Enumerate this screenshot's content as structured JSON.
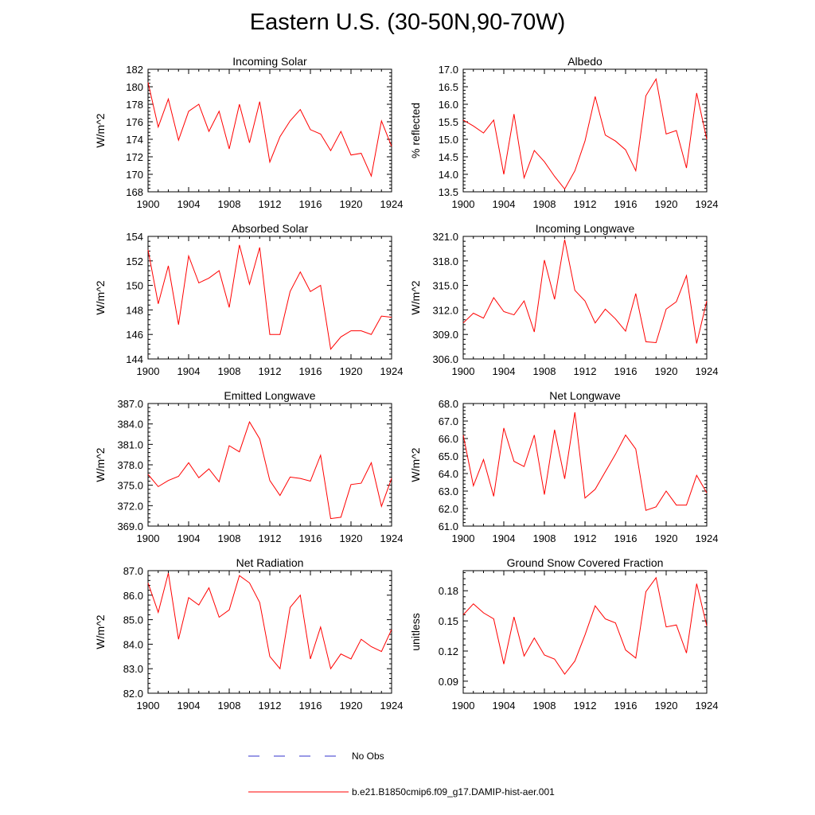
{
  "title": "Eastern U.S. (30-50N,90-70W)",
  "colors": {
    "model": "#ff0000",
    "obs": "#3333cc",
    "axis": "#000000"
  },
  "legend": {
    "obs_label": "No Obs",
    "model_label": "b.e21.B1850cmip6.f09_g17.DAMIP-hist-aer.001"
  },
  "chart_data": [
    {
      "type": "line",
      "title": "Incoming Solar",
      "xlabel": "",
      "ylabel": "W/m^2",
      "xlim": [
        1900,
        1924
      ],
      "ylim": [
        168,
        182
      ],
      "xticks": [
        1900,
        1904,
        1908,
        1912,
        1916,
        1920,
        1924
      ],
      "yticks": [
        168,
        170,
        172,
        174,
        176,
        178,
        180,
        182
      ],
      "ydecimals": 0,
      "x": [
        1900,
        1901,
        1902,
        1903,
        1904,
        1905,
        1906,
        1907,
        1908,
        1909,
        1910,
        1911,
        1912,
        1913,
        1914,
        1915,
        1916,
        1917,
        1918,
        1919,
        1920,
        1921,
        1922,
        1923,
        1924
      ],
      "y": [
        180.5,
        175.4,
        178.6,
        173.9,
        177.2,
        178.0,
        174.9,
        177.2,
        172.9,
        178.0,
        173.6,
        178.3,
        171.4,
        174.3,
        176.1,
        177.4,
        175.1,
        174.6,
        172.7,
        174.9,
        172.2,
        172.4,
        169.8,
        176.1,
        173.2
      ]
    },
    {
      "type": "line",
      "title": "Albedo",
      "xlabel": "",
      "ylabel": "% reflected",
      "xlim": [
        1900,
        1924
      ],
      "ylim": [
        13.5,
        17.0
      ],
      "xticks": [
        1900,
        1904,
        1908,
        1912,
        1916,
        1920,
        1924
      ],
      "yticks": [
        13.5,
        14.0,
        14.5,
        15.0,
        15.5,
        16.0,
        16.5,
        17.0
      ],
      "ydecimals": 1,
      "x": [
        1900,
        1901,
        1902,
        1903,
        1904,
        1905,
        1906,
        1907,
        1908,
        1909,
        1910,
        1911,
        1912,
        1913,
        1914,
        1915,
        1916,
        1917,
        1918,
        1919,
        1920,
        1921,
        1922,
        1923,
        1924
      ],
      "y": [
        15.55,
        15.38,
        15.18,
        15.55,
        14.0,
        15.72,
        13.9,
        14.68,
        14.36,
        13.94,
        13.58,
        14.1,
        14.95,
        16.22,
        15.12,
        14.95,
        14.7,
        14.1,
        16.24,
        16.72,
        15.15,
        15.25,
        14.18,
        16.32,
        15.0
      ]
    },
    {
      "type": "line",
      "title": "Absorbed Solar",
      "xlabel": "",
      "ylabel": "W/m^2",
      "xlim": [
        1900,
        1924
      ],
      "ylim": [
        144,
        154
      ],
      "xticks": [
        1900,
        1904,
        1908,
        1912,
        1916,
        1920,
        1924
      ],
      "yticks": [
        144,
        146,
        148,
        150,
        152,
        154
      ],
      "ydecimals": 0,
      "x": [
        1900,
        1901,
        1902,
        1903,
        1904,
        1905,
        1906,
        1907,
        1908,
        1909,
        1910,
        1911,
        1912,
        1913,
        1914,
        1915,
        1916,
        1917,
        1918,
        1919,
        1920,
        1921,
        1922,
        1923,
        1924
      ],
      "y": [
        152.9,
        148.5,
        151.6,
        146.8,
        152.4,
        150.2,
        150.6,
        151.2,
        148.2,
        153.3,
        150.1,
        153.1,
        146.0,
        146.0,
        149.5,
        151.1,
        149.5,
        150.0,
        144.8,
        145.8,
        146.3,
        146.3,
        146.0,
        147.5,
        147.4
      ]
    },
    {
      "type": "line",
      "title": "Incoming Longwave",
      "xlabel": "",
      "ylabel": "W/m^2",
      "xlim": [
        1900,
        1924
      ],
      "ylim": [
        306.0,
        321.0
      ],
      "xticks": [
        1900,
        1904,
        1908,
        1912,
        1916,
        1920,
        1924
      ],
      "yticks": [
        306.0,
        309.0,
        312.0,
        315.0,
        318.0,
        321.0
      ],
      "ydecimals": 1,
      "x": [
        1900,
        1901,
        1902,
        1903,
        1904,
        1905,
        1906,
        1907,
        1908,
        1909,
        1910,
        1911,
        1912,
        1913,
        1914,
        1915,
        1916,
        1917,
        1918,
        1919,
        1920,
        1921,
        1922,
        1923,
        1924
      ],
      "y": [
        310.4,
        311.6,
        311.0,
        313.5,
        311.8,
        311.4,
        313.1,
        309.3,
        318.1,
        313.3,
        320.6,
        314.4,
        313.1,
        310.4,
        312.1,
        310.9,
        309.4,
        314.0,
        308.1,
        308.0,
        312.1,
        313.0,
        316.2,
        307.9,
        313.1
      ]
    },
    {
      "type": "line",
      "title": "Emitted Longwave",
      "xlabel": "",
      "ylabel": "W/m^2",
      "xlim": [
        1900,
        1924
      ],
      "ylim": [
        369.0,
        387.0
      ],
      "xticks": [
        1900,
        1904,
        1908,
        1912,
        1916,
        1920,
        1924
      ],
      "yticks": [
        369.0,
        372.0,
        375.0,
        378.0,
        381.0,
        384.0,
        387.0
      ],
      "ydecimals": 1,
      "x": [
        1900,
        1901,
        1902,
        1903,
        1904,
        1905,
        1906,
        1907,
        1908,
        1909,
        1910,
        1911,
        1912,
        1913,
        1914,
        1915,
        1916,
        1917,
        1918,
        1919,
        1920,
        1921,
        1922,
        1923,
        1924
      ],
      "y": [
        376.6,
        374.8,
        375.7,
        376.3,
        378.3,
        376.1,
        377.4,
        375.5,
        380.8,
        379.9,
        384.3,
        381.8,
        375.7,
        373.5,
        376.2,
        376.0,
        375.6,
        379.4,
        370.1,
        370.3,
        375.1,
        375.3,
        378.3,
        371.9,
        376.0
      ]
    },
    {
      "type": "line",
      "title": "Net Longwave",
      "xlabel": "",
      "ylabel": "W/m^2",
      "xlim": [
        1900,
        1924
      ],
      "ylim": [
        61.0,
        68.0
      ],
      "xticks": [
        1900,
        1904,
        1908,
        1912,
        1916,
        1920,
        1924
      ],
      "yticks": [
        61.0,
        62.0,
        63.0,
        64.0,
        65.0,
        66.0,
        67.0,
        68.0
      ],
      "ydecimals": 1,
      "x": [
        1900,
        1901,
        1902,
        1903,
        1904,
        1905,
        1906,
        1907,
        1908,
        1909,
        1910,
        1911,
        1912,
        1913,
        1914,
        1915,
        1916,
        1917,
        1918,
        1919,
        1920,
        1921,
        1922,
        1923,
        1924
      ],
      "y": [
        66.2,
        63.3,
        64.8,
        62.7,
        66.6,
        64.7,
        64.4,
        66.2,
        62.8,
        66.5,
        63.7,
        67.5,
        62.6,
        63.1,
        64.1,
        65.1,
        66.2,
        65.4,
        61.9,
        62.1,
        63.0,
        62.2,
        62.2,
        63.9,
        62.9
      ]
    },
    {
      "type": "line",
      "title": "Net Radiation",
      "xlabel": "",
      "ylabel": "W/m^2",
      "xlim": [
        1900,
        1924
      ],
      "ylim": [
        82.0,
        87.0
      ],
      "xticks": [
        1900,
        1904,
        1908,
        1912,
        1916,
        1920,
        1924
      ],
      "yticks": [
        82.0,
        83.0,
        84.0,
        85.0,
        86.0,
        87.0
      ],
      "ydecimals": 1,
      "x": [
        1900,
        1901,
        1902,
        1903,
        1904,
        1905,
        1906,
        1907,
        1908,
        1909,
        1910,
        1911,
        1912,
        1913,
        1914,
        1915,
        1916,
        1917,
        1918,
        1919,
        1920,
        1921,
        1922,
        1923,
        1924
      ],
      "y": [
        86.5,
        85.3,
        86.9,
        84.2,
        85.9,
        85.6,
        86.3,
        85.1,
        85.4,
        86.8,
        86.5,
        85.7,
        83.5,
        83.0,
        85.5,
        86.0,
        83.4,
        84.7,
        83.0,
        83.6,
        83.4,
        84.2,
        83.9,
        83.7,
        84.6
      ]
    },
    {
      "type": "line",
      "title": "Ground Snow Covered Fraction",
      "xlabel": "",
      "ylabel": "unitless",
      "xlim": [
        1900,
        1924
      ],
      "ylim": [
        0.078,
        0.2
      ],
      "xticks": [
        1900,
        1904,
        1908,
        1912,
        1916,
        1920,
        1924
      ],
      "yticks": [
        0.09,
        0.12,
        0.15,
        0.18
      ],
      "ydecimals": 2,
      "x": [
        1900,
        1901,
        1902,
        1903,
        1904,
        1905,
        1906,
        1907,
        1908,
        1909,
        1910,
        1911,
        1912,
        1913,
        1914,
        1915,
        1916,
        1917,
        1918,
        1919,
        1920,
        1921,
        1922,
        1923,
        1924
      ],
      "y": [
        0.156,
        0.167,
        0.158,
        0.152,
        0.107,
        0.154,
        0.115,
        0.133,
        0.116,
        0.112,
        0.097,
        0.11,
        0.136,
        0.165,
        0.152,
        0.148,
        0.121,
        0.113,
        0.179,
        0.193,
        0.144,
        0.146,
        0.118,
        0.187,
        0.145
      ]
    }
  ]
}
